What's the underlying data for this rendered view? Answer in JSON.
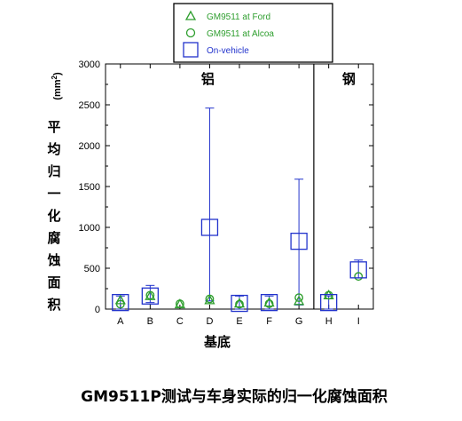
{
  "caption": "GM9511P测试与车身实际的归一化腐蚀面积",
  "chart_data": {
    "type": "scatter",
    "xlabel": "基底",
    "ylabel": "平均归一化腐蚀面积",
    "yunit": "(mm",
    "yunit_sup": "2",
    "yunit_close": ")",
    "ylim": [
      0,
      3000
    ],
    "yticks": [
      "0",
      "500",
      "1000",
      "1500",
      "2000",
      "2500",
      "3000"
    ],
    "categories": [
      "A",
      "B",
      "C",
      "D",
      "E",
      "F",
      "G",
      "H",
      "I"
    ],
    "regions": [
      {
        "label": "铝",
        "categories": [
          "A",
          "B",
          "C",
          "D",
          "E",
          "F",
          "G"
        ]
      },
      {
        "label": "钢",
        "categories": [
          "H",
          "I"
        ]
      }
    ],
    "grid": false,
    "legend_position": "top-center",
    "series": [
      {
        "name": "GM9511 at Ford",
        "marker": "triangle",
        "color": "#2e9e2e",
        "values": [
          110,
          160,
          60,
          110,
          70,
          80,
          100,
          170,
          null
        ]
      },
      {
        "name": "GM9511 at Alcoa",
        "marker": "circle",
        "color": "#2e9e2e",
        "values": [
          60,
          170,
          65,
          125,
          60,
          65,
          140,
          170,
          400
        ]
      },
      {
        "name": "On-vehicle",
        "marker": "square",
        "color": "#2233cc",
        "values": [
          80,
          160,
          0,
          1000,
          70,
          80,
          830,
          80,
          480
        ],
        "err_low": [
          0,
          80,
          0,
          100,
          0,
          0,
          50,
          0,
          380
        ],
        "err_high": [
          160,
          290,
          0,
          2460,
          160,
          160,
          1590,
          160,
          600
        ]
      }
    ]
  }
}
